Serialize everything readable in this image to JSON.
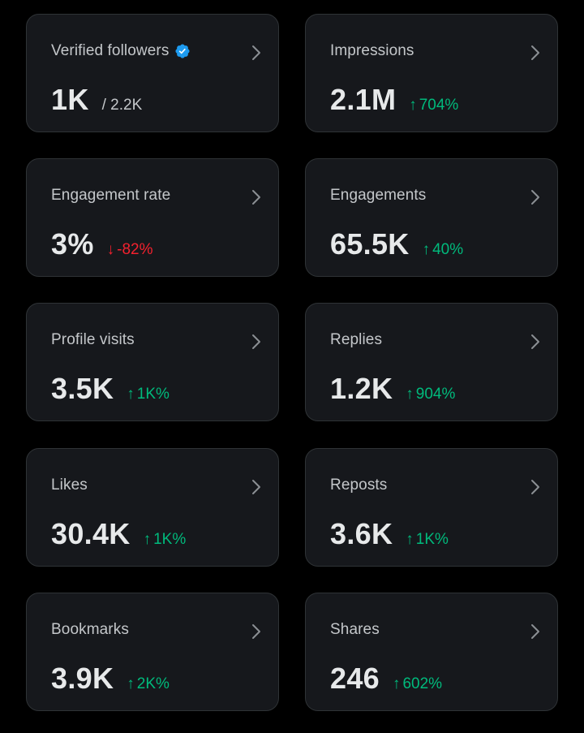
{
  "colors": {
    "background": "#000000",
    "card": "#16181c",
    "card_border": "#2f3336",
    "up": "#00ba7c",
    "down": "#f4212e",
    "verified": "#1d9bf0"
  },
  "cards": [
    {
      "label": "Verified followers",
      "value": "1K",
      "sub": "/ 2.2K",
      "verified": true
    },
    {
      "label": "Impressions",
      "value": "2.1M",
      "delta": "704%",
      "direction": "up"
    },
    {
      "label": "Engagement rate",
      "value": "3%",
      "delta": "-82%",
      "direction": "down"
    },
    {
      "label": "Engagements",
      "value": "65.5K",
      "delta": "40%",
      "direction": "up"
    },
    {
      "label": "Profile visits",
      "value": "3.5K",
      "delta": "1K%",
      "direction": "up"
    },
    {
      "label": "Replies",
      "value": "1.2K",
      "delta": "904%",
      "direction": "up"
    },
    {
      "label": "Likes",
      "value": "30.4K",
      "delta": "1K%",
      "direction": "up"
    },
    {
      "label": "Reposts",
      "value": "3.6K",
      "delta": "1K%",
      "direction": "up"
    },
    {
      "label": "Bookmarks",
      "value": "3.9K",
      "delta": "2K%",
      "direction": "up"
    },
    {
      "label": "Shares",
      "value": "246",
      "delta": "602%",
      "direction": "up"
    }
  ],
  "icons": {
    "chevron": "chevron-right-icon",
    "verified": "verified-badge-icon",
    "up": "arrow-up-icon",
    "down": "arrow-down-icon"
  }
}
